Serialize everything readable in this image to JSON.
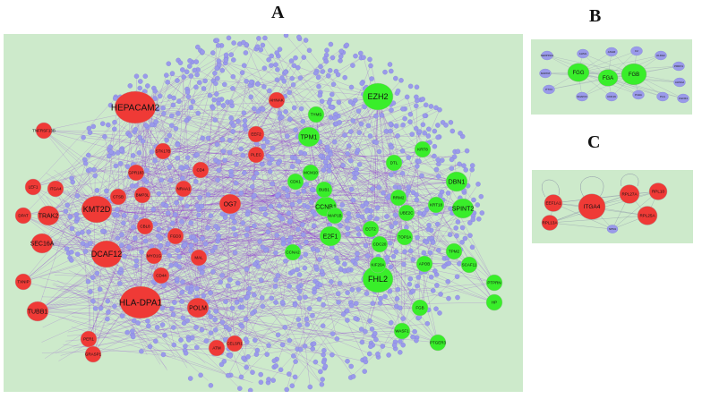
{
  "panels": {
    "A": {
      "letter": "A",
      "red_nodes": [
        {
          "label": "HEPACAM2",
          "size": "xl"
        },
        {
          "label": "HLA-DPA1",
          "size": "xl"
        },
        {
          "label": "DCAF12",
          "size": "l"
        },
        {
          "label": "KMT2D",
          "size": "l"
        },
        {
          "label": "SEC16A",
          "size": "m"
        },
        {
          "label": "TUBB1",
          "size": "m"
        },
        {
          "label": "TRAK2",
          "size": "m"
        },
        {
          "label": "POLM",
          "size": "m"
        },
        {
          "label": "OG7",
          "size": "m"
        },
        {
          "label": "AHNAK",
          "size": "s"
        },
        {
          "label": "PER1",
          "size": "s"
        },
        {
          "label": "ITGA4",
          "size": "s"
        },
        {
          "label": "LEF1",
          "size": "s"
        },
        {
          "label": "TNFRSF13B",
          "size": "s"
        },
        {
          "label": "CTSB",
          "size": "s"
        },
        {
          "label": "BMP3L",
          "size": "s"
        },
        {
          "label": "CBL8",
          "size": "s"
        },
        {
          "label": "PLEC",
          "size": "s"
        },
        {
          "label": "EEF2",
          "size": "s"
        },
        {
          "label": "TXNIP",
          "size": "s"
        },
        {
          "label": "DPAT",
          "size": "s"
        },
        {
          "label": "MAL",
          "size": "s"
        },
        {
          "label": "FGD3",
          "size": "s"
        },
        {
          "label": "MYO1G",
          "size": "s"
        },
        {
          "label": "CD44",
          "size": "s"
        },
        {
          "label": "STK17B",
          "size": "s"
        },
        {
          "label": "CD4",
          "size": "s"
        },
        {
          "label": "NRAA1",
          "size": "s"
        },
        {
          "label": "GPR183",
          "size": "s"
        },
        {
          "label": "CELSR1",
          "size": "s"
        },
        {
          "label": "ATM",
          "size": "s"
        },
        {
          "label": "GRASP1",
          "size": "s"
        }
      ],
      "green_nodes": [
        {
          "label": "EZH2",
          "size": "l"
        },
        {
          "label": "FHL2",
          "size": "l"
        },
        {
          "label": "DBN1",
          "size": "m"
        },
        {
          "label": "TPM1",
          "size": "m"
        },
        {
          "label": "CCNB1",
          "size": "m"
        },
        {
          "label": "E2F1",
          "size": "m"
        },
        {
          "label": "SPINT2",
          "size": "m"
        },
        {
          "label": "TPM2",
          "size": "s"
        },
        {
          "label": "FGB",
          "size": "s"
        },
        {
          "label": "KRT18",
          "size": "s"
        },
        {
          "label": "BUB1",
          "size": "s"
        },
        {
          "label": "MAP1B",
          "size": "s"
        },
        {
          "label": "TYMS",
          "size": "s"
        },
        {
          "label": "KRT8",
          "size": "s"
        },
        {
          "label": "APOB",
          "size": "s"
        },
        {
          "label": "CDK1",
          "size": "s"
        },
        {
          "label": "MCM10",
          "size": "s"
        },
        {
          "label": "KIF20A",
          "size": "s"
        },
        {
          "label": "RRM2",
          "size": "s"
        },
        {
          "label": "UBE2C",
          "size": "s"
        },
        {
          "label": "PTPRN",
          "size": "s"
        },
        {
          "label": "PTGER3",
          "size": "s"
        },
        {
          "label": "WASF1",
          "size": "s"
        },
        {
          "label": "ECT2",
          "size": "s"
        },
        {
          "label": "TOP2A",
          "size": "s"
        },
        {
          "label": "CDC20",
          "size": "s"
        },
        {
          "label": "DTL",
          "size": "s"
        },
        {
          "label": "CCNA2",
          "size": "s"
        },
        {
          "label": "SCAF11",
          "size": "s"
        },
        {
          "label": "HP",
          "size": "s"
        }
      ]
    },
    "B": {
      "letter": "B",
      "green_nodes": [
        "FGG",
        "FGA",
        "FGB"
      ],
      "blue_nodes": [
        "SERPINA1",
        "AHSG",
        "ASGR",
        "F2",
        "ALDH2",
        "PRRX1",
        "MAPK8",
        "AHSG2",
        "PTX3",
        "SNAP23",
        "CDK19",
        "P4HA",
        "PLG",
        "FGFR4"
      ]
    },
    "C": {
      "letter": "C",
      "red_nodes": [
        "EEF1A1",
        "ITGA4",
        "RPL27A",
        "RPL10",
        "RPL25A",
        "RPL13A"
      ],
      "blue_nodes": [
        "NPM1"
      ]
    }
  },
  "colors": {
    "panel_bg": "#cdeacb",
    "red_node": "#ef3a36",
    "green_node": "#39ee2a",
    "blue_node": "#9a9aea",
    "edge": "#8a2bd6"
  }
}
